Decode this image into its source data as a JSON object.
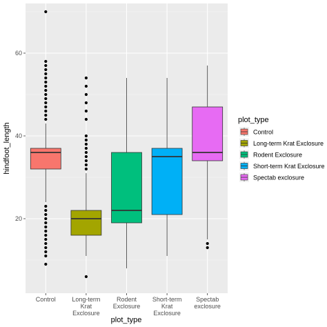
{
  "chart_data": {
    "type": "box",
    "xlabel": "plot_type",
    "ylabel": "hindfoot_length",
    "ylim": [
      2,
      72
    ],
    "yticks": [
      20,
      40,
      60
    ],
    "grid": true,
    "legend": {
      "title": "plot_type",
      "placement": "right",
      "entries": [
        {
          "label": "Control",
          "color": "#F8766D"
        },
        {
          "label": "Long-term Krat Exclosure",
          "color": "#A3A500"
        },
        {
          "label": "Rodent Exclosure",
          "color": "#00BF7D"
        },
        {
          "label": "Short-term Krat Exclosure",
          "color": "#00B0F6"
        },
        {
          "label": "Spectab exclosure",
          "color": "#E76BF3"
        }
      ]
    },
    "categories": [
      {
        "label": [
          "Control"
        ],
        "color": "#F8766D",
        "q1": 32,
        "median": 36,
        "q3": 37,
        "whisker_low": 24,
        "whisker_high": 43,
        "outliers": [
          9,
          11,
          12,
          13,
          14,
          15,
          16,
          17,
          18,
          19,
          20,
          21,
          22,
          23,
          44,
          45,
          46,
          47,
          48,
          49,
          50,
          51,
          52,
          53,
          54,
          55,
          56,
          57,
          58,
          70
        ]
      },
      {
        "label": [
          "Long-term",
          "Krat",
          "Exclosure"
        ],
        "color": "#A3A500",
        "q1": 16,
        "median": 20,
        "q3": 22,
        "whisker_low": 11,
        "whisker_high": 31,
        "outliers": [
          6,
          32,
          33,
          34,
          35,
          36,
          37,
          38,
          39,
          40,
          44,
          46,
          48,
          50,
          52,
          54
        ]
      },
      {
        "label": [
          "Rodent",
          "Exclosure"
        ],
        "color": "#00BF7D",
        "q1": 19,
        "median": 22,
        "q3": 36,
        "whisker_low": 8,
        "whisker_high": 54,
        "outliers": []
      },
      {
        "label": [
          "Short-term",
          "Krat",
          "Exclosure"
        ],
        "color": "#00B0F6",
        "q1": 21,
        "median": 35,
        "q3": 37,
        "whisker_low": 11,
        "whisker_high": 54,
        "outliers": []
      },
      {
        "label": [
          "Spectab",
          "exclosure"
        ],
        "color": "#E76BF3",
        "q1": 34,
        "median": 36,
        "q3": 47,
        "whisker_low": 15,
        "whisker_high": 57,
        "outliers": [
          13,
          14
        ]
      }
    ]
  }
}
